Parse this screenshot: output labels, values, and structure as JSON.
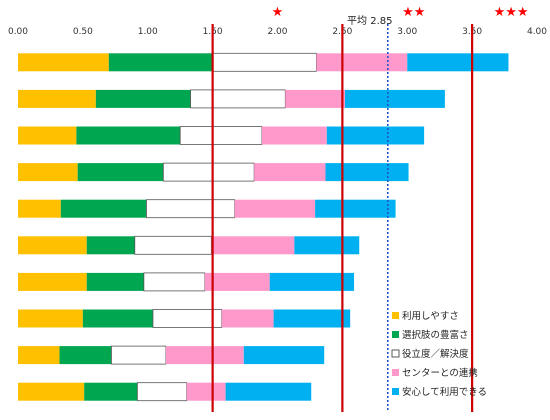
{
  "chart_data": {
    "type": "bar",
    "orientation": "horizontal",
    "stacked": true,
    "xlim": [
      0,
      4.0
    ],
    "x_ticks": [
      "0.00",
      "0.50",
      "1.00",
      "1.50",
      "2.00",
      "2.50",
      "3.00",
      "3.50",
      "4.00"
    ],
    "x_tick_values": [
      0,
      0.5,
      1.0,
      1.5,
      2.0,
      2.5,
      3.0,
      3.5,
      4.0
    ],
    "grid": false,
    "legend_position": "bottom-right",
    "series": [
      {
        "name": "利用しやすさ",
        "color": "#FFC000",
        "values": [
          0.7,
          0.6,
          0.45,
          0.46,
          0.33,
          0.53,
          0.53,
          0.5,
          0.32,
          0.51
        ]
      },
      {
        "name": "選択肢の豊富さ",
        "color": "#00A650",
        "values": [
          0.8,
          0.73,
          0.8,
          0.66,
          0.66,
          0.37,
          0.44,
          0.54,
          0.4,
          0.41
        ]
      },
      {
        "name": "役立度／解決度",
        "color": "#FFFFFF",
        "values": [
          0.8,
          0.73,
          0.63,
          0.7,
          0.68,
          0.59,
          0.47,
          0.53,
          0.42,
          0.38
        ]
      },
      {
        "name": "センターとの連携",
        "color": "#FF99CC",
        "values": [
          0.7,
          0.46,
          0.5,
          0.55,
          0.62,
          0.64,
          0.5,
          0.4,
          0.6,
          0.3
        ]
      },
      {
        "name": "安心して利用できる",
        "color": "#00B0F0",
        "values": [
          0.78,
          0.77,
          0.75,
          0.64,
          0.62,
          0.5,
          0.65,
          0.59,
          0.62,
          0.66
        ]
      }
    ],
    "reference_lines": [
      {
        "value": 1.5,
        "style": "solid",
        "color": "#CC0000"
      },
      {
        "value": 2.5,
        "style": "solid",
        "color": "#CC0000"
      },
      {
        "value": 3.5,
        "style": "solid",
        "color": "#CC0000"
      },
      {
        "value": 2.85,
        "style": "dotted",
        "color": "#2255CC"
      }
    ],
    "annotations": {
      "average_label": "平均 2.85",
      "average_value": 2.85,
      "star_labels": [
        {
          "text": "★",
          "value": 2.0,
          "color": "#FF0000"
        },
        {
          "text": "★★",
          "value": 3.05,
          "color": "#FF0000"
        },
        {
          "text": "★★★",
          "value": 3.8,
          "color": "#FF0000"
        }
      ]
    }
  }
}
